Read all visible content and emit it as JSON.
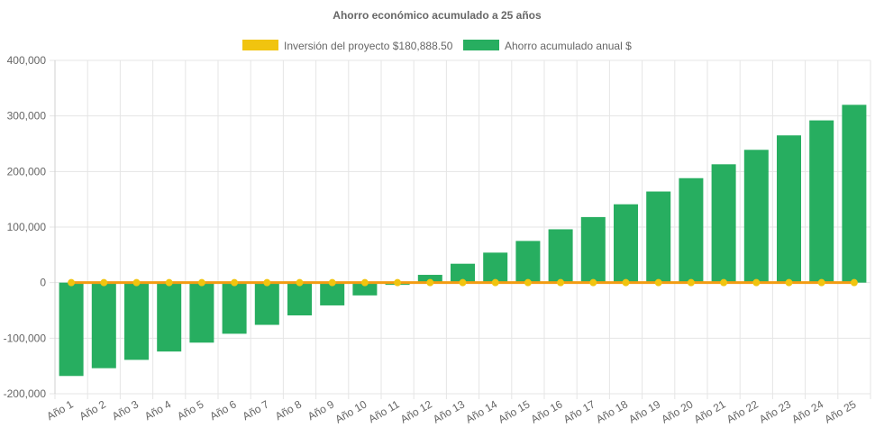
{
  "chart_data": {
    "type": "bar",
    "title": "Ahorro económico acumulado a 25 años",
    "xlabel": "",
    "ylabel": "",
    "ylim": [
      -200000,
      400000
    ],
    "yticks": [
      "400,000",
      "300,000",
      "200,000",
      "100,000",
      "0",
      "-100,000",
      "-200,000"
    ],
    "grid": true,
    "legend_position": "top",
    "categories": [
      "Año 1",
      "Año 2",
      "Año 3",
      "Año 4",
      "Año 5",
      "Año 6",
      "Año 7",
      "Año 8",
      "Año 9",
      "Año 10",
      "Año 11",
      "Año 12",
      "Año 13",
      "Año 14",
      "Año 15",
      "Año 16",
      "Año 17",
      "Año 18",
      "Año 19",
      "Año 20",
      "Año 21",
      "Año 22",
      "Año 23",
      "Año 24",
      "Año 25"
    ],
    "series": [
      {
        "name": "Inversión del proyecto $180,888.50",
        "type": "line",
        "color": "#f1c40f",
        "values": [
          0,
          0,
          0,
          0,
          0,
          0,
          0,
          0,
          0,
          0,
          0,
          0,
          0,
          0,
          0,
          0,
          0,
          0,
          0,
          0,
          0,
          0,
          0,
          0,
          0
        ]
      },
      {
        "name": "Ahorro acumulado anual $",
        "type": "bar",
        "color": "#27ae60",
        "values": [
          -168000,
          -154000,
          -139000,
          -124000,
          -108000,
          -92000,
          -76000,
          -59000,
          -41000,
          -23000,
          -4000,
          14000,
          34000,
          54000,
          75000,
          96000,
          118000,
          141000,
          164000,
          188000,
          213000,
          239000,
          265000,
          292000,
          320000
        ]
      }
    ]
  }
}
